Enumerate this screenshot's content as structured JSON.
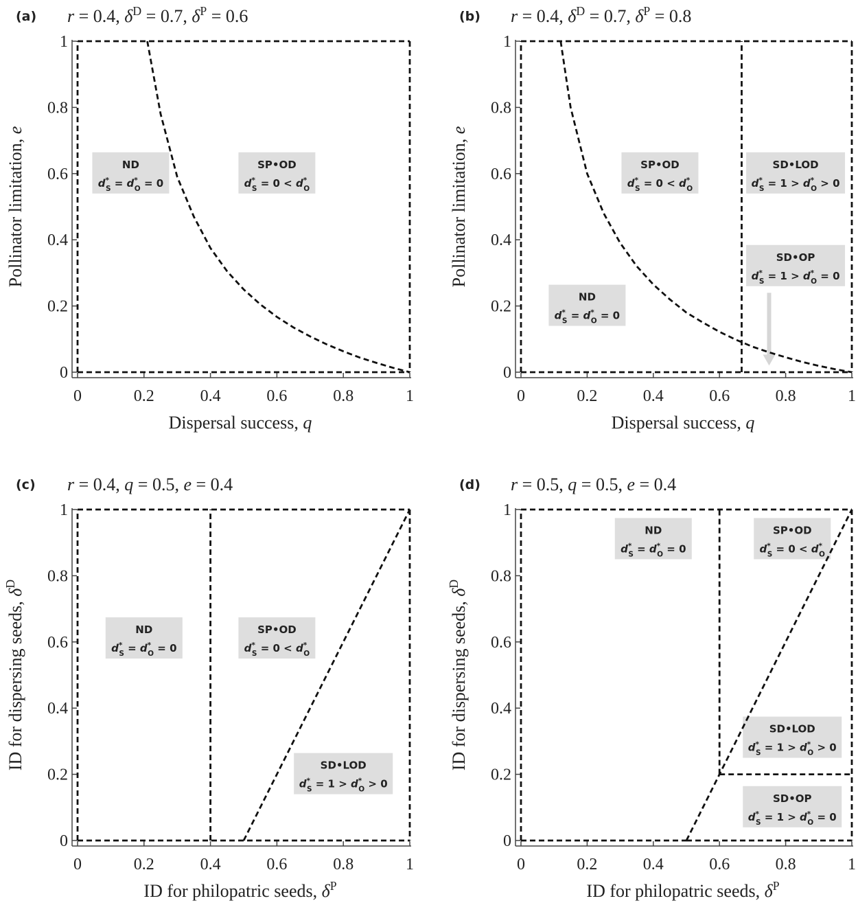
{
  "chart_data": [
    {
      "type": "line",
      "panel": "(a)",
      "title": "r = 0.4, δD = 0.7, δP = 0.6",
      "xlabel": "Dispersal success, q",
      "ylabel": "Pollinator limitation, e",
      "xlim": [
        0,
        1
      ],
      "ylim": [
        0,
        1
      ],
      "x_ticks": [
        "0",
        "0.2",
        "0.4",
        "0.6",
        "0.8",
        "1"
      ],
      "y_ticks": [
        "0",
        "0.2",
        "0.4",
        "0.6",
        "0.8",
        "1"
      ],
      "boundaries": [
        {
          "kind": "curve",
          "x": [
            0.21,
            0.25,
            0.3,
            0.35,
            0.4,
            0.45,
            0.5,
            0.55,
            0.6,
            0.65,
            0.7,
            0.75,
            0.8,
            0.85,
            0.9,
            0.95,
            1.0
          ],
          "y": [
            1.0,
            0.78,
            0.59,
            0.47,
            0.375,
            0.305,
            0.25,
            0.205,
            0.167,
            0.135,
            0.108,
            0.084,
            0.063,
            0.044,
            0.028,
            0.013,
            0.0
          ]
        },
        {
          "kind": "polyline",
          "x": [
            0,
            0
          ],
          "y": [
            0,
            1
          ]
        },
        {
          "kind": "polyline",
          "x": [
            0,
            1
          ],
          "y": [
            1,
            1
          ]
        },
        {
          "kind": "polyline",
          "x": [
            1,
            1
          ],
          "y": [
            1,
            0
          ]
        },
        {
          "kind": "polyline",
          "x": [
            0,
            1
          ],
          "y": [
            0,
            0
          ]
        }
      ],
      "regions": [
        {
          "name": "ND",
          "condition": "d*S = d*O = 0",
          "x": 0.16,
          "y": 0.6
        },
        {
          "name": "SP•OD",
          "condition": "d*S = 0 < d*O",
          "x": 0.6,
          "y": 0.6
        }
      ]
    },
    {
      "type": "line",
      "panel": "(b)",
      "title": "r = 0.4, δD = 0.7, δP = 0.8",
      "xlabel": "Dispersal success, q",
      "ylabel": "Pollinator limitation, e",
      "xlim": [
        0,
        1
      ],
      "ylim": [
        0,
        1
      ],
      "x_ticks": [
        "0",
        "0.2",
        "0.4",
        "0.6",
        "0.8",
        "1"
      ],
      "y_ticks": [
        "0",
        "0.2",
        "0.4",
        "0.6",
        "0.8",
        "1"
      ],
      "boundaries": [
        {
          "kind": "curve",
          "x": [
            0.12,
            0.15,
            0.2,
            0.25,
            0.3,
            0.35,
            0.4,
            0.45,
            0.5,
            0.55,
            0.6,
            0.65,
            0.7,
            0.75,
            0.8,
            0.85,
            0.9,
            0.95,
            1.0
          ],
          "y": [
            1.0,
            0.8,
            0.6,
            0.48,
            0.39,
            0.32,
            0.265,
            0.22,
            0.18,
            0.15,
            0.122,
            0.098,
            0.077,
            0.06,
            0.045,
            0.031,
            0.019,
            0.009,
            0.0
          ]
        },
        {
          "kind": "polyline",
          "x": [
            0,
            0
          ],
          "y": [
            0,
            1
          ]
        },
        {
          "kind": "polyline",
          "x": [
            0,
            1
          ],
          "y": [
            1,
            1
          ]
        },
        {
          "kind": "polyline",
          "x": [
            1,
            1
          ],
          "y": [
            1,
            0
          ]
        },
        {
          "kind": "polyline",
          "x": [
            0,
            1
          ],
          "y": [
            0,
            0
          ]
        },
        {
          "kind": "polyline",
          "x": [
            0.667,
            0.667
          ],
          "y": [
            0,
            1
          ]
        }
      ],
      "regions": [
        {
          "name": "SP•OD",
          "condition": "d*S = 0 < d*O",
          "x": 0.42,
          "y": 0.6
        },
        {
          "name": "SD•LOD",
          "condition": "d*S = 1 > d*O > 0",
          "x": 0.83,
          "y": 0.6
        },
        {
          "name": "SD•OP",
          "condition": "d*S = 1 > d*O = 0",
          "x": 0.83,
          "y": 0.32
        },
        {
          "name": "ND",
          "condition": "d*S = d*O = 0",
          "x": 0.2,
          "y": 0.2
        }
      ],
      "annotations": [
        {
          "kind": "arrow",
          "from": [
            0.75,
            0.24
          ],
          "to": [
            0.75,
            0.02
          ]
        }
      ]
    },
    {
      "type": "line",
      "panel": "(c)",
      "title": "r = 0.4, q = 0.5, e = 0.4",
      "xlabel": "ID for philopatric seeds, δP",
      "ylabel": "ID for dispersing seeds, δD",
      "xlim": [
        0,
        1
      ],
      "ylim": [
        0,
        1
      ],
      "x_ticks": [
        "0",
        "0.2",
        "0.4",
        "0.6",
        "0.8",
        "1"
      ],
      "y_ticks": [
        "0",
        "0.2",
        "0.4",
        "0.6",
        "0.8",
        "1"
      ],
      "boundaries": [
        {
          "kind": "polyline",
          "x": [
            0,
            0
          ],
          "y": [
            0,
            1
          ]
        },
        {
          "kind": "polyline",
          "x": [
            0,
            1
          ],
          "y": [
            1,
            1
          ]
        },
        {
          "kind": "polyline",
          "x": [
            1,
            1
          ],
          "y": [
            1,
            0
          ]
        },
        {
          "kind": "polyline",
          "x": [
            0,
            1
          ],
          "y": [
            0,
            0
          ]
        },
        {
          "kind": "polyline",
          "x": [
            0.4,
            0.4
          ],
          "y": [
            0,
            1
          ]
        },
        {
          "kind": "polyline",
          "x": [
            0.5,
            1.0
          ],
          "y": [
            0,
            1.0
          ]
        }
      ],
      "regions": [
        {
          "name": "ND",
          "condition": "d*S = d*O = 0",
          "x": 0.2,
          "y": 0.61
        },
        {
          "name": "SP•OD",
          "condition": "d*S = 0 < d*O",
          "x": 0.6,
          "y": 0.61
        },
        {
          "name": "SD•LOD",
          "condition": "d*S = 1 > d*O > 0",
          "x": 0.8,
          "y": 0.2
        }
      ]
    },
    {
      "type": "line",
      "panel": "(d)",
      "title": "r = 0.5, q = 0.5, e = 0.4",
      "xlabel": "ID for philopatric seeds, δP",
      "ylabel": "ID for dispersing seeds, δD",
      "xlim": [
        0,
        1
      ],
      "ylim": [
        0,
        1
      ],
      "x_ticks": [
        "0",
        "0.2",
        "0.4",
        "0.6",
        "0.8",
        "1"
      ],
      "y_ticks": [
        "0",
        "0.2",
        "0.4",
        "0.6",
        "0.8",
        "1"
      ],
      "boundaries": [
        {
          "kind": "polyline",
          "x": [
            0,
            0
          ],
          "y": [
            0,
            1
          ]
        },
        {
          "kind": "polyline",
          "x": [
            0,
            1
          ],
          "y": [
            1,
            1
          ]
        },
        {
          "kind": "polyline",
          "x": [
            1,
            1
          ],
          "y": [
            1,
            0
          ]
        },
        {
          "kind": "polyline",
          "x": [
            0,
            0.5
          ],
          "y": [
            0,
            0
          ]
        },
        {
          "kind": "polyline",
          "x": [
            0.5,
            1
          ],
          "y": [
            0,
            0
          ]
        },
        {
          "kind": "polyline",
          "x": [
            0.6,
            0.6
          ],
          "y": [
            0.2,
            1
          ]
        },
        {
          "kind": "polyline",
          "x": [
            0.6,
            1.0
          ],
          "y": [
            0.2,
            0.2
          ]
        },
        {
          "kind": "polyline",
          "x": [
            0.5,
            0.6,
            1.0
          ],
          "y": [
            0,
            0.2,
            1.0
          ]
        }
      ],
      "regions": [
        {
          "name": "ND",
          "condition": "d*S = d*O = 0",
          "x": 0.4,
          "y": 0.91
        },
        {
          "name": "SP•OD",
          "condition": "d*S = 0 < d*O",
          "x": 0.82,
          "y": 0.91
        },
        {
          "name": "SD•LOD",
          "condition": "d*S = 1 > d*O > 0",
          "x": 0.82,
          "y": 0.31
        },
        {
          "name": "SD•OP",
          "condition": "d*S = 1 > d*O = 0",
          "x": 0.82,
          "y": 0.1
        }
      ]
    }
  ]
}
